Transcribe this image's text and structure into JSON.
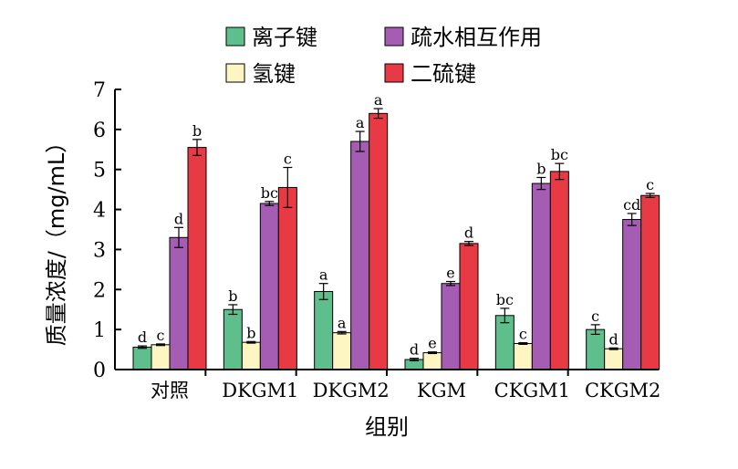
{
  "chart_data": {
    "type": "bar",
    "categories": [
      "对照",
      "DKGM1",
      "DKGM2",
      "KGM",
      "CKGM1",
      "CKGM2"
    ],
    "series": [
      {
        "name": "离子键",
        "color": "#5fbf8c",
        "values": [
          0.56,
          1.5,
          1.95,
          0.25,
          1.35,
          1.0
        ],
        "errors": [
          0.03,
          0.12,
          0.2,
          0.03,
          0.18,
          0.12
        ],
        "labels": [
          "d",
          "b",
          "a",
          "d",
          "bc",
          "c"
        ]
      },
      {
        "name": "氢键",
        "color": "#fdf6c3",
        "values": [
          0.62,
          0.68,
          0.92,
          0.42,
          0.65,
          0.52
        ],
        "errors": [
          0.02,
          0.02,
          0.03,
          0.02,
          0.02,
          0.02
        ],
        "labels": [
          "c",
          "b",
          "a",
          "e",
          "c",
          "d"
        ]
      },
      {
        "name": "疏水相互作用",
        "color": "#a55db4",
        "values": [
          3.3,
          4.15,
          5.7,
          2.15,
          4.65,
          3.75
        ],
        "errors": [
          0.25,
          0.05,
          0.25,
          0.05,
          0.15,
          0.15
        ],
        "labels": [
          "d",
          "bc",
          "a",
          "e",
          "b",
          "cd"
        ]
      },
      {
        "name": "二硫键",
        "color": "#e83a44",
        "values": [
          5.55,
          4.55,
          6.4,
          3.15,
          4.95,
          4.35
        ],
        "errors": [
          0.2,
          0.5,
          0.12,
          0.05,
          0.2,
          0.05
        ],
        "labels": [
          "b",
          "c",
          "a",
          "d",
          "bc",
          "c"
        ]
      }
    ],
    "xlabel": "组别",
    "ylabel": "质量浓度/（mg/mL）",
    "ylim": [
      0,
      7
    ],
    "yticks": [
      0,
      1,
      2,
      3,
      4,
      5,
      6,
      7
    ],
    "grid": false,
    "legend": "top"
  }
}
